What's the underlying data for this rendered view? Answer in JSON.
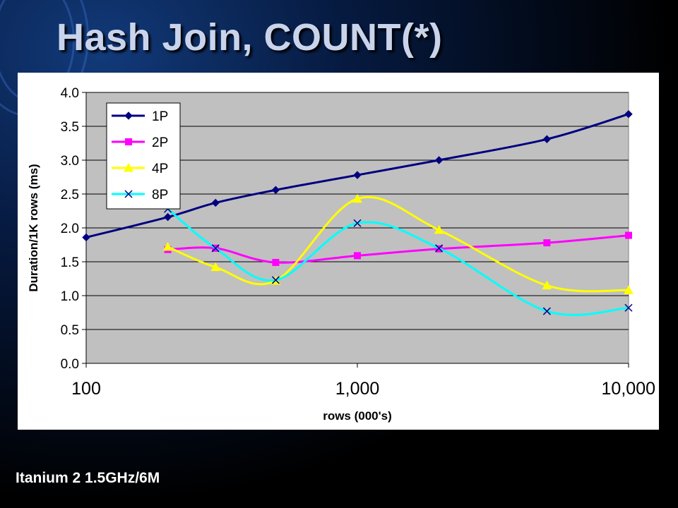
{
  "slide": {
    "title": "Hash Join, COUNT(*)",
    "footnote": "Itanium 2 1.5GHz/6M"
  },
  "colors": {
    "plot_background": "#c0c0c0",
    "series_1P": "#000080",
    "series_2P": "#ff00ff",
    "series_4P": "#ffff00",
    "series_8P": "#00ffff"
  },
  "chart_data": {
    "type": "line",
    "title": "",
    "xlabel": "rows (000's)",
    "ylabel": "Duration/1K rows (ms)",
    "x_scale": "log",
    "xlim": [
      100,
      10000
    ],
    "ylim": [
      0,
      4.0
    ],
    "x_ticks": [
      100,
      1000,
      10000
    ],
    "x_tick_labels": [
      "100",
      "1,000",
      "10,000"
    ],
    "y_ticks": [
      0,
      0.5,
      1.0,
      1.5,
      2.0,
      2.5,
      3.0,
      3.5,
      4.0
    ],
    "y_tick_labels": [
      "0.0",
      "0.5",
      "1.0",
      "1.5",
      "2.0",
      "2.5",
      "3.0",
      "3.5",
      "4.0"
    ],
    "grid": "horizontal",
    "legend_position": "top-left",
    "series": [
      {
        "name": "1P",
        "marker": "diamond",
        "color": "#000080",
        "x": [
          100,
          200,
          300,
          500,
          1000,
          2000,
          5000,
          10000
        ],
        "y": [
          1.86,
          2.16,
          2.37,
          2.56,
          2.78,
          3.0,
          3.31,
          3.68
        ]
      },
      {
        "name": "2P",
        "marker": "square",
        "color": "#ff00ff",
        "x": [
          200,
          300,
          500,
          1000,
          2000,
          5000,
          10000
        ],
        "y": [
          1.68,
          1.7,
          1.49,
          1.59,
          1.69,
          1.78,
          1.89
        ]
      },
      {
        "name": "4P",
        "marker": "triangle",
        "color": "#ffff00",
        "x": [
          200,
          300,
          500,
          1000,
          2000,
          5000,
          10000
        ],
        "y": [
          1.72,
          1.42,
          1.22,
          2.43,
          1.97,
          1.15,
          1.08
        ]
      },
      {
        "name": "8P",
        "marker": "x",
        "color": "#00ffff",
        "x": [
          200,
          300,
          500,
          1000,
          2000,
          5000,
          10000
        ],
        "y": [
          2.28,
          1.7,
          1.23,
          2.07,
          1.7,
          0.77,
          0.82
        ]
      }
    ]
  }
}
